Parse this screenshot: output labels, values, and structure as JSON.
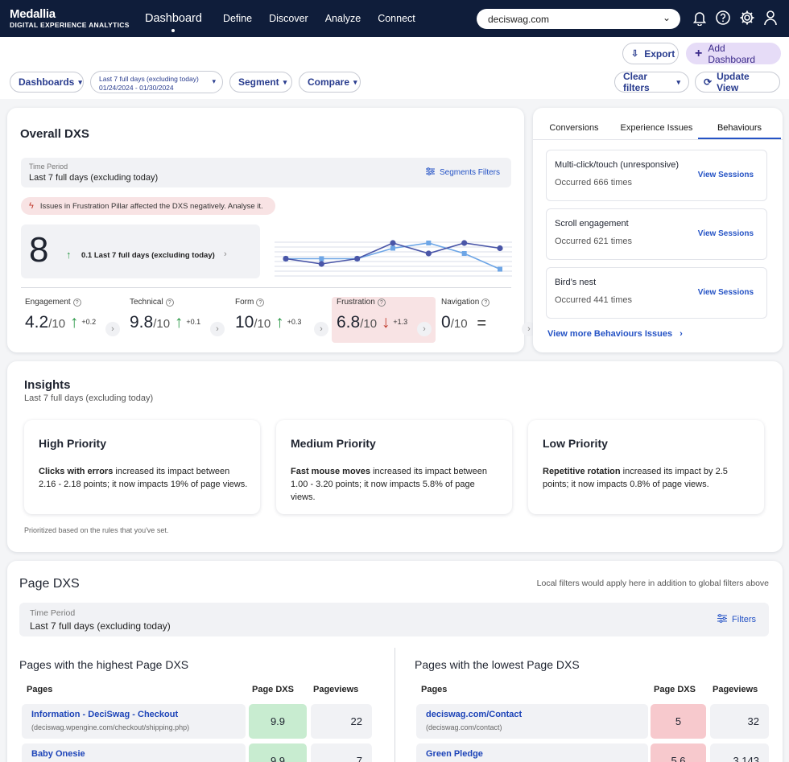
{
  "nav": {
    "brand_line1": "Medallia",
    "brand_line2": "DIGITAL EXPERIENCE ANALYTICS",
    "active": "Dashboard",
    "items": [
      "Define",
      "Discover",
      "Analyze",
      "Connect"
    ],
    "site": "deciswag.com",
    "icons": [
      "bell-icon",
      "help-icon",
      "settings-icon",
      "user-icon"
    ]
  },
  "toolbar": {
    "export": "Export",
    "add_dashboard": "Add Dashboard",
    "dashboards": "Dashboards",
    "date_label": "Last 7 full days (excluding today)",
    "date_range": "01/24/2024 - 01/30/2024",
    "segment": "Segment",
    "compare": "Compare",
    "clear_filters": "Clear filters",
    "update_view": "Update View"
  },
  "overall": {
    "title": "Overall DXS",
    "tp_label": "Time Period",
    "tp_value": "Last 7 full days (excluding today)",
    "segments_filters": "Segments Filters",
    "alert": "Issues in Frustration Pillar affected the DXS negatively. Analyse it.",
    "score": "8",
    "delta": "0.1",
    "delta_period": "Last 7 full days (excluding today)",
    "kpis": [
      {
        "label": "Engagement",
        "value": "4.2",
        "of": "/10",
        "delta": "+0.2",
        "dir": "up"
      },
      {
        "label": "Technical",
        "value": "9.8",
        "of": "/10",
        "delta": "+0.1",
        "dir": "up"
      },
      {
        "label": "Form",
        "value": "10",
        "of": "/10",
        "delta": "+0.3",
        "dir": "up"
      },
      {
        "label": "Frustration",
        "value": "6.8",
        "of": "/10",
        "delta": "+1.3",
        "dir": "down"
      },
      {
        "label": "Navigation",
        "value": "0",
        "of": "/10",
        "delta": "=",
        "dir": "flat"
      }
    ]
  },
  "sparkline": {
    "series_current": [
      3,
      2,
      3,
      6,
      4,
      6,
      5
    ],
    "series_previous": [
      3,
      3,
      3,
      5,
      6,
      4,
      1
    ]
  },
  "issues": {
    "tabs": [
      "Conversions",
      "Experience Issues",
      "Behaviours"
    ],
    "active_tab": "Behaviours",
    "items": [
      {
        "title": "Multi-click/touch (unresponsive)",
        "occurred": "Occurred 666 times",
        "action": "View Sessions"
      },
      {
        "title": "Scroll engagement",
        "occurred": "Occurred 621 times",
        "action": "View Sessions"
      },
      {
        "title": "Bird’s nest",
        "occurred": "Occurred 441 times",
        "action": "View Sessions"
      }
    ],
    "more": "View more Behaviours Issues"
  },
  "insights": {
    "title": "Insights",
    "subtitle": "Last 7 full days (excluding today)",
    "cards": [
      {
        "title": "High Priority",
        "bold": "Clicks with errors",
        "text": " increased its impact between 2.16 - 2.18 points; it now impacts 19% of page views."
      },
      {
        "title": "Medium Priority",
        "bold": "Fast mouse moves",
        "text": " increased its impact between 1.00 - 3.20 points; it now impacts 5.8% of page views."
      },
      {
        "title": "Low Priority",
        "bold": "Repetitive rotation",
        "text": " increased its impact by 2.5 points; it now impacts 0.8% of page views."
      }
    ],
    "footnote": "Prioritized based on the rules that you've set."
  },
  "page_dxs": {
    "title": "Page DXS",
    "note": "Local filters would apply here in addition to global filters above",
    "tp_label": "Time Period",
    "tp_value": "Last 7 full days (excluding today)",
    "filters": "Filters",
    "highest": {
      "title": "Pages with the highest Page DXS",
      "cols": [
        "Pages",
        "Page DXS",
        "Pageviews"
      ],
      "rows": [
        {
          "name": "Information - DeciSwag - Checkout",
          "url": "(deciswag.wpengine.com/checkout/shipping.php)",
          "dxs": "9.9",
          "views": "22"
        },
        {
          "name": "Baby Onesie",
          "url": "",
          "dxs": "9.9",
          "views": "7"
        }
      ]
    },
    "lowest": {
      "title": "Pages with the lowest Page DXS",
      "cols": [
        "Pages",
        "Page DXS",
        "Pageviews"
      ],
      "rows": [
        {
          "name": "deciswag.com/Contact",
          "url": "(deciswag.com/contact)",
          "dxs": "5",
          "views": "32"
        },
        {
          "name": "Green Pledge",
          "url": "",
          "dxs": "5.6",
          "views": "3,143"
        }
      ]
    }
  },
  "colors": {
    "nav_bg": "#0f1d3a",
    "accent": "#2553c5",
    "good": "#c8ecd0",
    "bad": "#f7c9cd",
    "add_btn": "#e6dcf7"
  }
}
